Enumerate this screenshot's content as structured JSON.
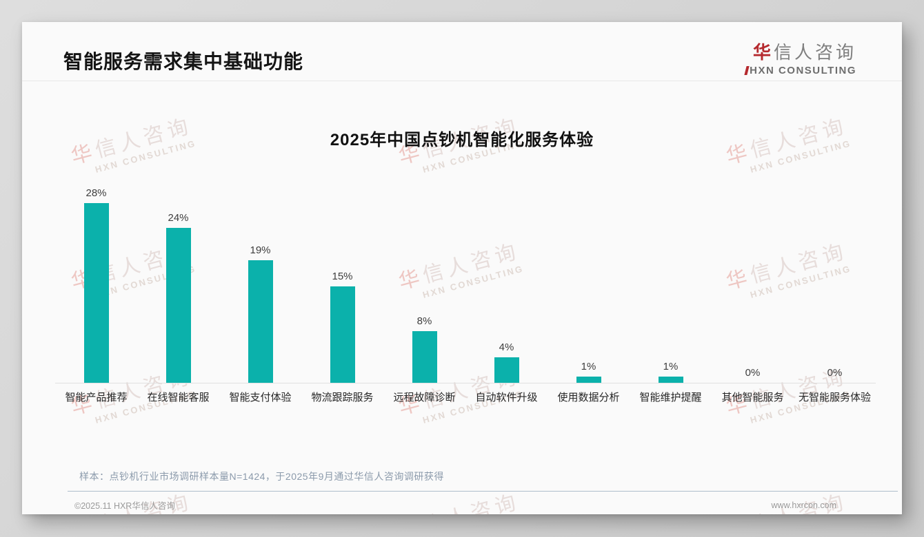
{
  "page": {
    "title": "智能服务需求集中基础功能",
    "logo": {
      "cn_first": "华",
      "cn_rest": "信人咨询",
      "en": "HXN CONSULTING"
    },
    "footnote": "样本：点钞机行业市场调研样本量N=1424，于2025年9月通过华信人咨询调研获得",
    "footer_left": "©2025.11 HXR华信人咨询",
    "footer_right": "www.hxrcon.com"
  },
  "watermark": {
    "line1_first": "华",
    "line1_rest": "信人咨询",
    "line2": "HXN CONSULTING"
  },
  "chart_data": {
    "type": "bar",
    "title": "2025年中国点钞机智能化服务体验",
    "categories": [
      "智能产品推荐",
      "在线智能客服",
      "智能支付体验",
      "物流跟踪服务",
      "远程故障诊断",
      "自动软件升级",
      "使用数据分析",
      "智能维护提醒",
      "其他智能服务",
      "无智能服务体验"
    ],
    "values": [
      28,
      24,
      19,
      15,
      8,
      4,
      1,
      1,
      0,
      0
    ],
    "value_labels": [
      "28%",
      "24%",
      "19%",
      "15%",
      "8%",
      "4%",
      "1%",
      "1%",
      "0%",
      "0%"
    ],
    "unit": "%",
    "bar_color": "#0bb1ab",
    "ylim": [
      0,
      30
    ],
    "grid": false,
    "legend": false,
    "value_label_position": "above-bars",
    "yaxis_visible": false
  }
}
